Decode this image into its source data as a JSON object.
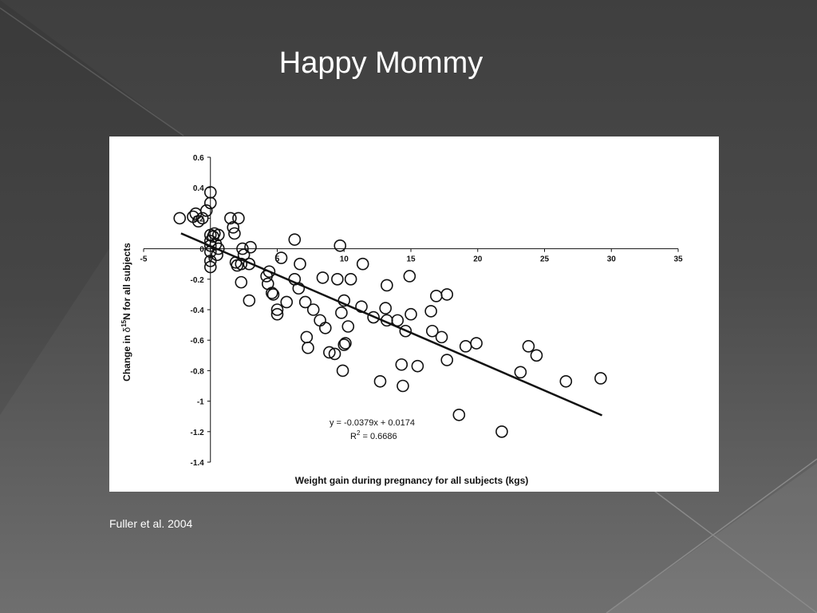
{
  "slide": {
    "title": "Happy Mommy",
    "citation": "Fuller et al. 2004"
  },
  "colors": {
    "background": "#4a4a4a",
    "panel": "#ffffff",
    "ink": "#111111"
  },
  "chart_data": {
    "type": "scatter",
    "xlabel": "Weight gain during pregnancy for all subjects (kgs)",
    "ylabel_parts": {
      "pre": "Change in ",
      "delta": "δ",
      "sup": "15",
      "post": "N for all subjects"
    },
    "xlim": [
      -5,
      35
    ],
    "ylim": [
      -1.4,
      0.6
    ],
    "x_ticks": [
      -5,
      0,
      5,
      10,
      15,
      20,
      25,
      30,
      35
    ],
    "y_ticks": [
      0.6,
      0.4,
      0.2,
      0,
      -0.2,
      -0.4,
      -0.6,
      -0.8,
      -1,
      -1.2,
      -1.4
    ],
    "x_tick_labels": [
      "-5",
      "0",
      "5",
      "10",
      "15",
      "20",
      "25",
      "30",
      "35"
    ],
    "y_tick_labels": [
      "0.6",
      "0.4",
      "0.2",
      "0",
      "-0.2",
      "-0.4",
      "-0.6",
      "-0.8",
      "-1",
      "-1.2",
      "-1.4"
    ],
    "trendline": {
      "slope": -0.0379,
      "intercept": 0.0174,
      "x_range": [
        -2.2,
        29.3
      ]
    },
    "equation_text": "y = -0.0379x + 0.0174",
    "r2_parts": {
      "pre": "R",
      "sup": "2",
      "post": " = 0.6686"
    },
    "grid": false,
    "legend": "none",
    "points": [
      [
        -2.3,
        0.2
      ],
      [
        -1.3,
        0.21
      ],
      [
        -1.1,
        0.23
      ],
      [
        -0.9,
        0.18
      ],
      [
        -0.6,
        0.2
      ],
      [
        -0.3,
        0.25
      ],
      [
        0,
        0.37
      ],
      [
        0,
        0.3
      ],
      [
        0,
        0.09
      ],
      [
        0,
        0.05
      ],
      [
        0,
        0.02
      ],
      [
        0,
        -0.02
      ],
      [
        0,
        -0.08
      ],
      [
        0,
        -0.12
      ],
      [
        0.2,
        0.08
      ],
      [
        0.3,
        0.1
      ],
      [
        0.4,
        0.03
      ],
      [
        0.5,
        -0.04
      ],
      [
        0.6,
        0.09
      ],
      [
        0.6,
        0.0
      ],
      [
        1.5,
        0.2
      ],
      [
        1.7,
        0.14
      ],
      [
        1.8,
        0.1
      ],
      [
        1.9,
        -0.09
      ],
      [
        2.0,
        -0.11
      ],
      [
        2.1,
        0.2
      ],
      [
        2.3,
        -0.1
      ],
      [
        2.4,
        0.0
      ],
      [
        2.5,
        -0.04
      ],
      [
        2.3,
        -0.22
      ],
      [
        2.9,
        -0.34
      ],
      [
        2.9,
        -0.1
      ],
      [
        3.0,
        0.01
      ],
      [
        4.2,
        -0.18
      ],
      [
        4.3,
        -0.23
      ],
      [
        4.4,
        -0.15
      ],
      [
        4.6,
        -0.29
      ],
      [
        4.7,
        -0.3
      ],
      [
        5.0,
        -0.4
      ],
      [
        5.0,
        -0.43
      ],
      [
        5.3,
        -0.06
      ],
      [
        5.7,
        -0.35
      ],
      [
        6.3,
        0.06
      ],
      [
        6.3,
        -0.2
      ],
      [
        6.6,
        -0.26
      ],
      [
        6.7,
        -0.1
      ],
      [
        7.1,
        -0.35
      ],
      [
        7.2,
        -0.58
      ],
      [
        7.3,
        -0.65
      ],
      [
        7.7,
        -0.4
      ],
      [
        8.2,
        -0.47
      ],
      [
        8.4,
        -0.19
      ],
      [
        8.6,
        -0.52
      ],
      [
        8.9,
        -0.68
      ],
      [
        9.3,
        -0.69
      ],
      [
        9.5,
        -0.2
      ],
      [
        9.7,
        0.02
      ],
      [
        9.8,
        -0.42
      ],
      [
        9.9,
        -0.8
      ],
      [
        10.0,
        -0.34
      ],
      [
        10.0,
        -0.63
      ],
      [
        10.1,
        -0.62
      ],
      [
        10.3,
        -0.51
      ],
      [
        10.5,
        -0.2
      ],
      [
        11.3,
        -0.38
      ],
      [
        11.4,
        -0.1
      ],
      [
        12.2,
        -0.45
      ],
      [
        12.7,
        -0.87
      ],
      [
        13.1,
        -0.39
      ],
      [
        13.2,
        -0.24
      ],
      [
        13.2,
        -0.47
      ],
      [
        14.0,
        -0.47
      ],
      [
        14.3,
        -0.76
      ],
      [
        14.4,
        -0.9
      ],
      [
        14.6,
        -0.54
      ],
      [
        14.9,
        -0.18
      ],
      [
        15.0,
        -0.43
      ],
      [
        15.5,
        -0.77
      ],
      [
        16.5,
        -0.41
      ],
      [
        16.6,
        -0.54
      ],
      [
        16.9,
        -0.31
      ],
      [
        17.3,
        -0.58
      ],
      [
        17.7,
        -0.73
      ],
      [
        17.7,
        -0.3
      ],
      [
        18.6,
        -1.09
      ],
      [
        19.1,
        -0.64
      ],
      [
        19.9,
        -0.62
      ],
      [
        21.8,
        -1.2
      ],
      [
        23.2,
        -0.81
      ],
      [
        23.8,
        -0.64
      ],
      [
        24.4,
        -0.7
      ],
      [
        26.6,
        -0.87
      ],
      [
        29.2,
        -0.85
      ]
    ]
  }
}
